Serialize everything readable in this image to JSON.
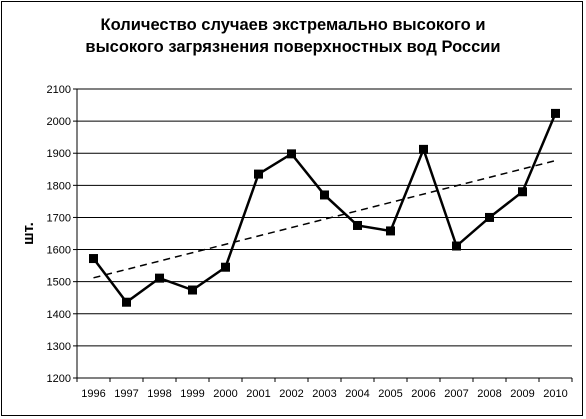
{
  "chart_data": {
    "type": "line",
    "title_lines": [
      "Количество случаев экстремально высокого и",
      "высокого загрязнения поверхностных вод России"
    ],
    "xlabel": "",
    "ylabel": "шт.",
    "categories": [
      "1996",
      "1997",
      "1998",
      "1999",
      "2000",
      "2001",
      "2002",
      "2003",
      "2004",
      "2005",
      "2006",
      "2007",
      "2008",
      "2009",
      "2010"
    ],
    "series": [
      {
        "values": [
          1572,
          1436,
          1511,
          1474,
          1545,
          1835,
          1898,
          1770,
          1675,
          1658,
          1912,
          1611,
          1700,
          1780,
          2024
        ],
        "style": "solid",
        "marker": "square",
        "color": "#000000"
      }
    ],
    "trendline": {
      "style": "dashed",
      "start": 1512,
      "end": 1877,
      "color": "#000000"
    },
    "ylim": [
      1200,
      2100
    ],
    "yticks": [
      1200,
      1300,
      1400,
      1500,
      1600,
      1700,
      1800,
      1900,
      2000,
      2100
    ],
    "grid": {
      "horizontal": true,
      "vertical": false
    },
    "legend": "none"
  }
}
